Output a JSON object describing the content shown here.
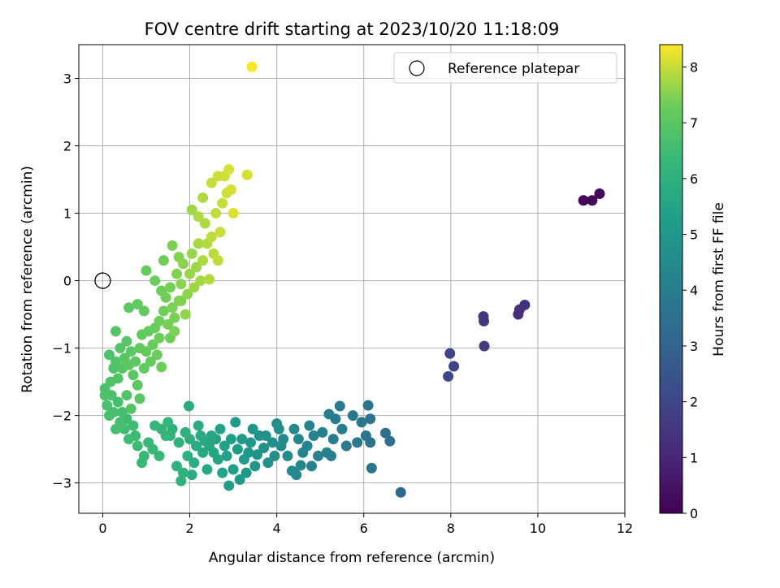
{
  "chart_data": {
    "type": "scatter",
    "title": "FOV centre drift starting at 2023/10/20 11:18:09",
    "xlabel": "Angular distance from reference (arcmin)",
    "ylabel": "Rotation from reference (arcmin)",
    "xlim": [
      -0.55,
      12.0
    ],
    "ylim": [
      -3.45,
      3.5
    ],
    "xticks": [
      "0",
      "2",
      "4",
      "6",
      "8",
      "10",
      "12"
    ],
    "yticks": [
      "−3",
      "−2",
      "−1",
      "0",
      "1",
      "2",
      "3"
    ],
    "grid": true,
    "legend": {
      "placement": "top-right",
      "entries": [
        {
          "label": "Reference platepar",
          "marker": "open-circle"
        }
      ]
    },
    "reference_point": {
      "x": 0,
      "y": 0
    },
    "colorbar": {
      "label": "Hours from first FF file",
      "range": [
        0,
        8.4
      ],
      "ticks": [
        "0",
        "1",
        "2",
        "3",
        "4",
        "5",
        "6",
        "7",
        "8"
      ],
      "colormap": "viridis"
    },
    "points": [
      [
        11.05,
        1.19,
        0.05
      ],
      [
        11.25,
        1.19,
        0.1
      ],
      [
        11.42,
        1.29,
        0.15
      ],
      [
        9.55,
        -0.5,
        1.2
      ],
      [
        9.58,
        -0.43,
        1.3
      ],
      [
        9.7,
        -0.36,
        1.35
      ],
      [
        8.75,
        -0.53,
        1.5
      ],
      [
        8.76,
        -0.6,
        1.55
      ],
      [
        8.77,
        -0.97,
        1.7
      ],
      [
        7.98,
        -1.08,
        1.9
      ],
      [
        8.07,
        -1.27,
        2.0
      ],
      [
        7.94,
        -1.42,
        2.05
      ],
      [
        6.85,
        -3.14,
        3.2
      ],
      [
        6.6,
        -2.38,
        3.4
      ],
      [
        6.5,
        -2.26,
        3.45
      ],
      [
        6.15,
        -2.4,
        3.5
      ],
      [
        6.18,
        -2.78,
        3.55
      ],
      [
        6.1,
        -1.85,
        3.6
      ],
      [
        6.15,
        -2.05,
        3.65
      ],
      [
        6.05,
        -2.3,
        3.7
      ],
      [
        5.95,
        -2.1,
        3.75
      ],
      [
        5.85,
        -2.4,
        3.8
      ],
      [
        5.75,
        -2.0,
        3.8
      ],
      [
        5.6,
        -2.45,
        3.85
      ],
      [
        5.5,
        -2.2,
        3.9
      ],
      [
        5.45,
        -1.86,
        3.9
      ],
      [
        5.35,
        -2.05,
        3.95
      ],
      [
        5.3,
        -2.35,
        4.0
      ],
      [
        5.25,
        -2.6,
        4.0
      ],
      [
        5.2,
        -1.98,
        4.05
      ],
      [
        5.15,
        -2.55,
        4.1
      ],
      [
        5.05,
        -2.25,
        4.1
      ],
      [
        4.95,
        -2.6,
        4.15
      ],
      [
        4.85,
        -2.3,
        4.2
      ],
      [
        4.8,
        -2.75,
        4.2
      ],
      [
        4.75,
        -2.15,
        4.25
      ],
      [
        4.7,
        -2.45,
        4.3
      ],
      [
        4.6,
        -2.55,
        4.3
      ],
      [
        4.55,
        -2.74,
        4.35
      ],
      [
        4.5,
        -2.35,
        4.4
      ],
      [
        4.45,
        -2.88,
        4.4
      ],
      [
        4.4,
        -2.2,
        4.45
      ],
      [
        4.35,
        -2.82,
        4.5
      ],
      [
        4.25,
        -2.6,
        4.5
      ],
      [
        4.15,
        -2.35,
        4.55
      ],
      [
        4.1,
        -2.45,
        4.6
      ],
      [
        4.05,
        -2.2,
        4.6
      ],
      [
        4.0,
        -2.12,
        4.65
      ],
      [
        3.95,
        -2.6,
        4.7
      ],
      [
        3.9,
        -2.4,
        4.7
      ],
      [
        3.8,
        -2.7,
        4.75
      ],
      [
        3.75,
        -2.3,
        4.8
      ],
      [
        3.7,
        -2.48,
        4.8
      ],
      [
        3.6,
        -2.3,
        4.85
      ],
      [
        3.55,
        -2.58,
        4.9
      ],
      [
        3.5,
        -2.75,
        4.9
      ],
      [
        3.45,
        -2.2,
        4.95
      ],
      [
        3.4,
        -2.4,
        5.0
      ],
      [
        3.35,
        -2.55,
        5.0
      ],
      [
        3.3,
        -2.85,
        5.05
      ],
      [
        3.25,
        -2.65,
        5.1
      ],
      [
        3.2,
        -2.35,
        5.1
      ],
      [
        3.15,
        -2.95,
        5.15
      ],
      [
        3.1,
        -2.5,
        5.2
      ],
      [
        3.05,
        -2.1,
        5.2
      ],
      [
        3.0,
        -2.8,
        5.25
      ],
      [
        2.95,
        -2.35,
        5.3
      ],
      [
        2.9,
        -3.04,
        5.3
      ],
      [
        2.85,
        -2.6,
        5.35
      ],
      [
        2.8,
        -2.45,
        5.4
      ],
      [
        2.75,
        -2.85,
        5.4
      ],
      [
        2.7,
        -2.2,
        5.45
      ],
      [
        2.65,
        -2.65,
        5.5
      ],
      [
        2.6,
        -2.35,
        5.5
      ],
      [
        2.55,
        -2.55,
        5.55
      ],
      [
        2.5,
        -2.3,
        5.6
      ],
      [
        2.45,
        -2.45,
        5.6
      ],
      [
        2.4,
        -2.8,
        5.65
      ],
      [
        2.35,
        -2.38,
        5.7
      ],
      [
        2.3,
        -2.55,
        5.7
      ],
      [
        2.25,
        -2.3,
        5.75
      ],
      [
        2.2,
        -2.15,
        5.8
      ],
      [
        2.15,
        -2.45,
        5.8
      ],
      [
        2.1,
        -2.7,
        5.85
      ],
      [
        2.05,
        -2.88,
        5.85
      ],
      [
        2.0,
        -2.35,
        5.9
      ],
      [
        1.98,
        -1.86,
        5.9
      ],
      [
        1.95,
        -2.6,
        5.95
      ],
      [
        1.9,
        -2.25,
        6.0
      ],
      [
        1.85,
        -2.85,
        6.0
      ],
      [
        1.8,
        -2.97,
        6.05
      ],
      [
        1.75,
        -2.4,
        6.05
      ],
      [
        1.7,
        -2.75,
        6.1
      ],
      [
        1.6,
        -2.2,
        6.1
      ],
      [
        1.55,
        -2.3,
        6.15
      ],
      [
        1.5,
        -2.1,
        6.2
      ],
      [
        1.45,
        -2.3,
        6.2
      ],
      [
        1.35,
        -2.2,
        6.25
      ],
      [
        1.3,
        -2.6,
        6.3
      ],
      [
        1.2,
        -2.15,
        6.3
      ],
      [
        1.15,
        -2.5,
        6.35
      ],
      [
        1.05,
        -2.4,
        6.35
      ],
      [
        0.95,
        -2.6,
        6.4
      ],
      [
        0.9,
        -2.7,
        6.4
      ],
      [
        0.8,
        -2.45,
        6.45
      ],
      [
        0.75,
        -2.3,
        6.45
      ],
      [
        0.7,
        -2.15,
        6.5
      ],
      [
        0.6,
        -2.35,
        6.5
      ],
      [
        0.55,
        -2.05,
        6.55
      ],
      [
        0.5,
        -2.2,
        6.55
      ],
      [
        0.45,
        -1.95,
        6.6
      ],
      [
        0.4,
        -2.1,
        6.6
      ],
      [
        0.35,
        -1.8,
        6.6
      ],
      [
        0.3,
        -2.2,
        6.65
      ],
      [
        0.25,
        -1.95,
        6.65
      ],
      [
        0.2,
        -1.7,
        6.7
      ],
      [
        0.15,
        -2.0,
        6.7
      ],
      [
        0.1,
        -1.85,
        6.7
      ],
      [
        0.05,
        -1.6,
        6.75
      ],
      [
        0.05,
        -1.7,
        6.75
      ],
      [
        0.18,
        -1.5,
        6.8
      ],
      [
        0.25,
        -1.3,
        6.8
      ],
      [
        0.15,
        -1.1,
        6.8
      ],
      [
        0.3,
        -1.2,
        6.85
      ],
      [
        0.35,
        -1.45,
        6.85
      ],
      [
        0.4,
        -1.0,
        6.9
      ],
      [
        0.45,
        -1.3,
        6.9
      ],
      [
        0.5,
        -1.15,
        6.95
      ],
      [
        0.55,
        -0.9,
        6.95
      ],
      [
        0.6,
        -1.25,
        7.0
      ],
      [
        0.65,
        -1.05,
        7.0
      ],
      [
        0.7,
        -1.4,
        7.0
      ],
      [
        0.75,
        -1.2,
        7.05
      ],
      [
        0.8,
        -1.55,
        7.05
      ],
      [
        0.85,
        -1.0,
        7.1
      ],
      [
        0.9,
        -0.8,
        7.1
      ],
      [
        0.95,
        -1.3,
        7.1
      ],
      [
        1.0,
        -1.05,
        7.15
      ],
      [
        1.05,
        -0.75,
        7.15
      ],
      [
        1.1,
        -1.2,
        7.2
      ],
      [
        1.15,
        -0.95,
        7.2
      ],
      [
        1.2,
        -0.7,
        7.25
      ],
      [
        1.25,
        -1.1,
        7.25
      ],
      [
        1.3,
        -0.85,
        7.3
      ],
      [
        1.35,
        -1.28,
        7.3
      ],
      [
        0.3,
        -0.75,
        6.9
      ],
      [
        0.55,
        -1.7,
        6.85
      ],
      [
        0.65,
        -1.9,
        6.9
      ],
      [
        0.85,
        -1.75,
        6.95
      ],
      [
        0.6,
        -0.4,
        7.05
      ],
      [
        0.95,
        -0.45,
        7.1
      ],
      [
        0.8,
        -0.35,
        7.15
      ],
      [
        1.3,
        -0.6,
        7.3
      ],
      [
        1.4,
        -0.45,
        7.35
      ],
      [
        1.45,
        -0.25,
        7.35
      ],
      [
        1.5,
        -0.65,
        7.4
      ],
      [
        1.55,
        -0.1,
        7.4
      ],
      [
        1.6,
        -0.4,
        7.45
      ],
      [
        1.65,
        -0.75,
        7.45
      ],
      [
        1.7,
        0.1,
        7.5
      ],
      [
        1.75,
        -0.3,
        7.5
      ],
      [
        1.8,
        -0.05,
        7.55
      ],
      [
        1.85,
        0.25,
        7.55
      ],
      [
        1.9,
        -0.5,
        7.6
      ],
      [
        1.95,
        -0.2,
        7.6
      ],
      [
        2.0,
        0.1,
        7.65
      ],
      [
        2.05,
        0.4,
        7.65
      ],
      [
        2.1,
        -0.1,
        7.7
      ],
      [
        2.15,
        0.2,
        7.7
      ],
      [
        2.2,
        0.55,
        7.75
      ],
      [
        2.25,
        0.0,
        7.75
      ],
      [
        2.3,
        0.3,
        7.8
      ],
      [
        2.35,
        0.85,
        7.8
      ],
      [
        2.4,
        0.55,
        7.85
      ],
      [
        2.45,
        0.02,
        7.85
      ],
      [
        2.5,
        0.65,
        7.9
      ],
      [
        2.55,
        0.4,
        7.9
      ],
      [
        2.6,
        1.0,
        7.95
      ],
      [
        2.65,
        0.3,
        7.95
      ],
      [
        2.7,
        0.72,
        8.0
      ],
      [
        2.75,
        1.15,
        8.0
      ],
      [
        2.8,
        1.55,
        8.05
      ],
      [
        2.85,
        1.3,
        8.05
      ],
      [
        2.9,
        1.65,
        8.1
      ],
      [
        2.95,
        1.35,
        8.1
      ],
      [
        3.0,
        1.0,
        8.15
      ],
      [
        1.75,
        0.35,
        7.5
      ],
      [
        1.6,
        0.52,
        7.45
      ],
      [
        1.0,
        0.15,
        7.2
      ],
      [
        1.2,
        0.0,
        7.25
      ],
      [
        1.35,
        -0.15,
        7.3
      ],
      [
        2.05,
        1.05,
        7.7
      ],
      [
        2.3,
        1.23,
        7.85
      ],
      [
        2.5,
        1.45,
        8.0
      ],
      [
        2.65,
        1.55,
        8.05
      ],
      [
        2.2,
        0.95,
        7.8
      ],
      [
        1.65,
        -0.55,
        7.4
      ],
      [
        1.55,
        -0.85,
        7.35
      ],
      [
        1.8,
        -0.3,
        7.5
      ],
      [
        1.4,
        0.3,
        7.35
      ],
      [
        3.32,
        1.57,
        8.1
      ],
      [
        3.43,
        3.17,
        8.35
      ]
    ]
  }
}
